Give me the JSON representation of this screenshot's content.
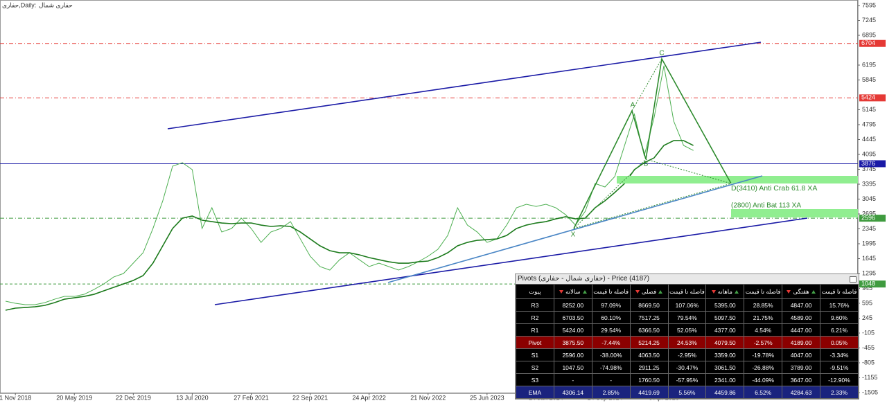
{
  "chart_data": {
    "type": "line",
    "title": "حفاری,Daily:",
    "subtitle": "حفاری شمال",
    "categories": [
      null,
      "1 Nov 2018",
      null,
      null,
      null,
      null,
      null,
      "20 May 2019",
      null,
      null,
      null,
      null,
      null,
      "22 Dec 2019",
      null,
      null,
      null,
      null,
      null,
      "13 Jul 2020",
      null,
      null,
      null,
      null,
      null,
      "27 Feb 2021",
      null,
      null,
      null,
      null,
      null,
      "22 Sep 2021",
      null,
      null,
      null,
      null,
      null,
      "24 Apr 2022",
      null,
      null,
      null,
      null,
      null,
      "21 Nov 2022",
      null,
      null,
      null,
      null,
      null,
      "25 Jun 2023",
      null,
      null,
      null,
      null,
      null,
      "24 Jan 2024",
      null,
      null,
      null,
      null,
      null,
      "14 Sep 2024",
      null,
      null,
      null,
      null,
      null,
      "6 Apr 2025",
      null,
      null,
      null
    ],
    "series": [
      {
        "name": "Price",
        "color": "#4caf50",
        "values": [
          644,
          595,
          562,
          562,
          611,
          692,
          757,
          757,
          806,
          920,
          1050,
          1213,
          1295,
          1539,
          1783,
          2353,
          3004,
          3818,
          3900,
          3737,
          2353,
          2841,
          2271,
          2353,
          2597,
          2353,
          2027,
          2271,
          2353,
          2515,
          2108,
          1702,
          1458,
          1376,
          1620,
          1783,
          1620,
          1458,
          1539,
          1458,
          1376,
          1458,
          1571,
          1702,
          1864,
          2190,
          2841,
          2434,
          2271,
          2027,
          2108,
          2434,
          2841,
          2922,
          2873,
          2922,
          2841,
          2678,
          2434,
          2760,
          3411,
          3330,
          3574,
          4307,
          5039,
          4062,
          4957,
          6179,
          4876,
          4307,
          4187
        ]
      },
      {
        "name": "EMA",
        "color": "#1b7a1b",
        "values": [
          432,
          481,
          497,
          513,
          546,
          611,
          692,
          725,
          757,
          806,
          888,
          969,
          1050,
          1132,
          1246,
          1539,
          1946,
          2353,
          2597,
          2646,
          2548,
          2515,
          2483,
          2467,
          2483,
          2483,
          2434,
          2402,
          2418,
          2402,
          2271,
          2108,
          1946,
          1832,
          1783,
          1783,
          1734,
          1669,
          1620,
          1571,
          1539,
          1539,
          1571,
          1588,
          1669,
          1783,
          1946,
          2027,
          2076,
          2092,
          2108,
          2190,
          2353,
          2434,
          2483,
          2515,
          2580,
          2630,
          2580,
          2597,
          2841,
          3004,
          3200,
          3411,
          3737,
          3900,
          4013,
          4307,
          4420,
          4420,
          4306
        ]
      }
    ],
    "ylim": [
      -1521,
      7725
    ],
    "yticks": [
      7595,
      7245,
      6895,
      6195,
      5845,
      5145,
      4795,
      4445,
      4095,
      3745,
      3395,
      3045,
      2695,
      2345,
      1995,
      1645,
      1295,
      945,
      595,
      245,
      -105,
      -455,
      -805,
      -1155,
      -1505
    ],
    "levels": [
      {
        "value": 6704,
        "color": "#e53935",
        "style": "dashdot"
      },
      {
        "value": 5424,
        "color": "#e53935",
        "style": "dashdot"
      },
      {
        "value": 3876,
        "color": "#1a1aa6",
        "style": "solid"
      },
      {
        "value": 2596,
        "color": "#3f9b3f",
        "style": "dashdot"
      },
      {
        "value": 1048,
        "color": "#3f9b3f",
        "style": "dashed"
      }
    ],
    "annotations": [
      "X",
      "A",
      "B",
      "C",
      "D(3410) Anti Crab 61.8 XA",
      "(2800) Anti Bat 113 XA"
    ]
  },
  "pivots": {
    "title": "Pivots (حفاری شمال - حفاری) - Price (4187)",
    "headers": [
      "پیوت",
      "سالانه",
      "فاصله تا قیمت",
      "فصلی",
      "فاصله تا قیمت",
      "ماهانه",
      "فاصله تا قیمت",
      "هفتگی",
      "فاصله تا قیمت"
    ],
    "rows": [
      [
        "R3",
        "8252.00",
        "97.09%",
        "8669.50",
        "107.06%",
        "5395.00",
        "28.85%",
        "4847.00",
        "15.76%"
      ],
      [
        "R2",
        "6703.50",
        "60.10%",
        "7517.25",
        "79.54%",
        "5097.50",
        "21.75%",
        "4589.00",
        "9.60%"
      ],
      [
        "R1",
        "5424.00",
        "29.54%",
        "6366.50",
        "52.05%",
        "4377.00",
        "4.54%",
        "4447.00",
        "6.21%"
      ],
      [
        "Pivot",
        "3875.50",
        "-7.44%",
        "5214.25",
        "24.53%",
        "4079.50",
        "-2.57%",
        "4189.00",
        "0.05%"
      ],
      [
        "S1",
        "2596.00",
        "-38.00%",
        "4063.50",
        "-2.95%",
        "3359.00",
        "-19.78%",
        "4047.00",
        "-3.34%"
      ],
      [
        "S2",
        "1047.50",
        "-74.98%",
        "2911.25",
        "-30.47%",
        "3061.50",
        "-26.88%",
        "3789.00",
        "-9.51%"
      ],
      [
        "S3",
        "-",
        "-",
        "1760.50",
        "-57.95%",
        "2341.00",
        "-44.09%",
        "3647.00",
        "-12.90%"
      ],
      [
        "EMA",
        "4306.14",
        "2.85%",
        "4419.69",
        "5.56%",
        "4459.86",
        "6.52%",
        "4284.63",
        "2.33%"
      ]
    ]
  }
}
